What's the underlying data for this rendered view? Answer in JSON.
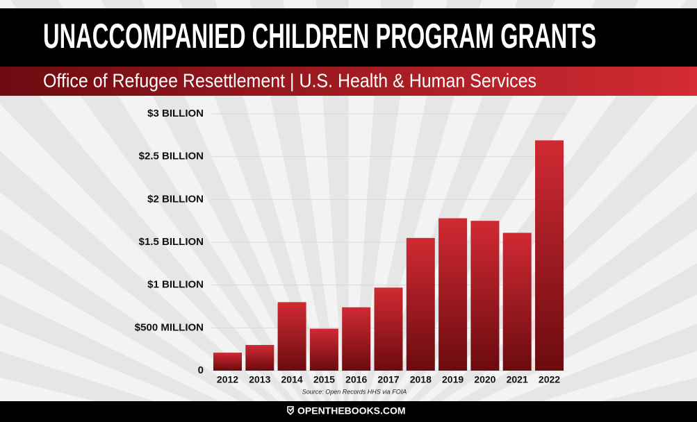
{
  "chart_data": {
    "type": "bar",
    "title": "UNACCOMPANIED CHILDREN PROGRAM GRANTS",
    "subtitle": "Office of Refugee Resettlement | U.S. Health & Human Services",
    "source": "Source: Open Records HHS via FOIA",
    "footer": "OPENTHEBOOKS.COM",
    "categories": [
      "2012",
      "2013",
      "2014",
      "2015",
      "2016",
      "2017",
      "2018",
      "2019",
      "2020",
      "2021",
      "2022"
    ],
    "values": [
      210000000,
      300000000,
      800000000,
      490000000,
      740000000,
      970000000,
      1550000000,
      1780000000,
      1750000000,
      1610000000,
      2690000000
    ],
    "color": "#d02a33",
    "ylim": [
      0,
      3000000000
    ],
    "yticks": [
      0,
      {
        "value": 500000000,
        "label": "$500 MILLION"
      },
      {
        "value": 1000000000,
        "label": "$1 BILLION"
      },
      {
        "value": 1500000000,
        "label": "$1.5 BILLION"
      },
      {
        "value": 2000000000,
        "label": "$2 BILLION"
      },
      {
        "value": 2500000000,
        "label": "$2.5 BILLION"
      },
      {
        "value": 3000000000,
        "label": "$3 BILLION"
      }
    ],
    "grid": true
  }
}
